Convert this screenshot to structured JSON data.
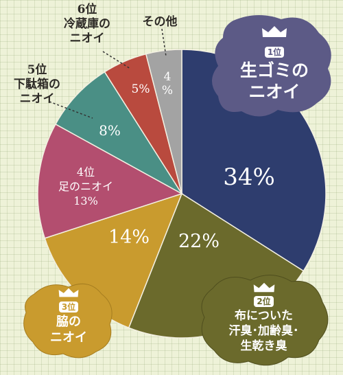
{
  "chart_data": {
    "type": "pie",
    "categories": [
      "生ゴミのニオイ",
      "布についた汗臭・加齢臭・生乾き臭",
      "脇のニオイ",
      "足のニオイ",
      "下駄箱のニオイ",
      "冷蔵庫のニオイ",
      "その他"
    ],
    "values": [
      34,
      22,
      14,
      13,
      8,
      5,
      4
    ],
    "unit": "%",
    "slice_colors": [
      "#2e3d6e",
      "#6b6a2c",
      "#c99b2e",
      "#b34e6f",
      "#4a8f85",
      "#b94a3e",
      "#a3a3a3"
    ],
    "labels": {
      "r1_rank": "1位",
      "r1_line1": "生ゴミの",
      "r1_line2": "ニオイ",
      "r2_rank": "2位",
      "r2_line1": "布についた",
      "r2_line2": "汗臭･加齢臭･",
      "r2_line3": "生乾き臭",
      "r3_rank": "3位",
      "r3_line1": "脇の",
      "r3_line2": "ニオイ",
      "r4_line1": "4位",
      "r4_line2": "足のニオイ",
      "r4_line3": "13%",
      "r5_line1": "5位",
      "r5_line2": "下駄箱の",
      "r5_line3": "ニオイ",
      "r6_line1": "6位",
      "r6_line2": "冷蔵庫の",
      "r6_line3": "ニオイ",
      "other": "その他"
    },
    "pct_labels": [
      "34%",
      "22%",
      "14%",
      "8%",
      "5%",
      "4"
    ],
    "pct_sign_other": "%"
  }
}
